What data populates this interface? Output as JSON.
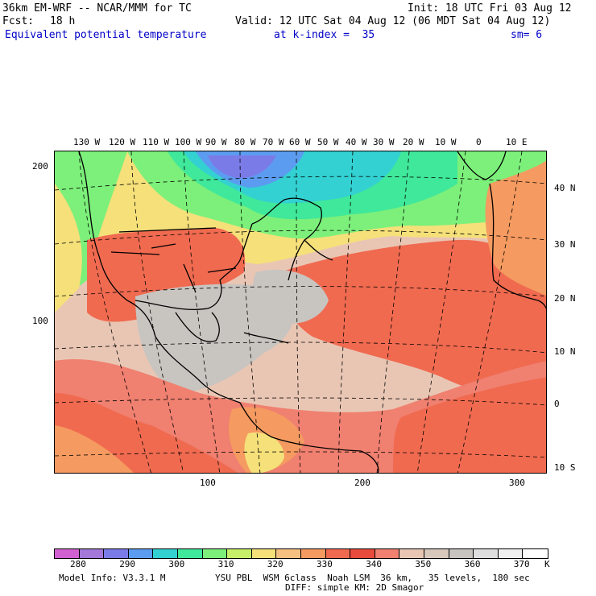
{
  "header": {
    "model": "36km EM-WRF -- NCAR/MMM for TC",
    "init": "Init: 18 UTC Fri 03 Aug 12",
    "fcst_label": "Fcst:",
    "fcst_value": "18 h",
    "valid": "Valid: 12 UTC Sat 04 Aug 12 (06 MDT Sat 04 Aug 12)",
    "field": "Equivalent potential temperature",
    "level": "at k-index =  35",
    "smoothing": "sm= 6"
  },
  "map": {
    "top_lon_labels": [
      "130 W",
      "120 W",
      "110 W",
      "100 W",
      "90 W",
      "80 W",
      "70 W",
      "60 W",
      "50 W",
      "40 W",
      "30 W",
      "20 W",
      "10 W",
      "0",
      "10 E"
    ],
    "right_lat_labels": [
      "40 N",
      "30 N",
      "20 N",
      "10 N",
      "0",
      "10 S"
    ],
    "left_grid_labels": [
      "200",
      "100"
    ],
    "bottom_grid_labels": [
      "100",
      "200",
      "300"
    ]
  },
  "colorbar": {
    "colors": [
      "#d160d1",
      "#a378d8",
      "#7b7be8",
      "#5c9cf0",
      "#33d1d1",
      "#3fe89a",
      "#7cf07a",
      "#c6f06a",
      "#f5e07a",
      "#f5c080",
      "#f59a60",
      "#f06a50",
      "#e84a3c",
      "#f08070",
      "#e9c6b4",
      "#d8c8bc",
      "#c8c4c0",
      "#dedede",
      "#f0f0f0",
      "#ffffff"
    ],
    "labels": [
      "280",
      "290",
      "300",
      "310",
      "320",
      "330",
      "340",
      "350",
      "360",
      "370"
    ],
    "unit": "K"
  },
  "footer": {
    "model_info": "Model Info: V3.3.1 M",
    "physics": "YSU PBL  WSM 6class  Noah LSM  36 km,   35 levels,  180 sec",
    "diffusion": "DIFF: simple KM: 2D Smagor"
  }
}
